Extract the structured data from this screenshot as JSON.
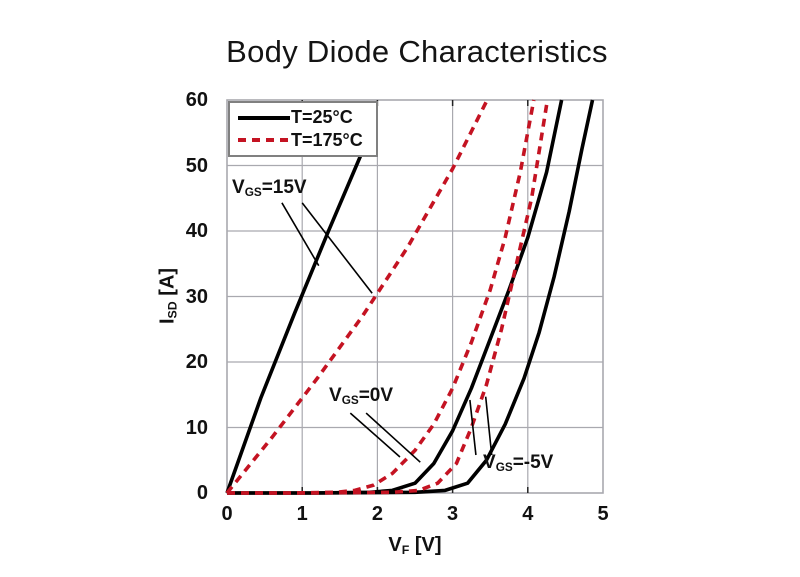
{
  "chart_data": {
    "type": "line",
    "title": "Body Diode Characteristics",
    "xlabel": "VF [V]",
    "ylabel": "ISD [A]",
    "xlim": [
      0,
      5
    ],
    "ylim": [
      0,
      60
    ],
    "x_ticks": [
      0,
      1,
      2,
      3,
      4,
      5
    ],
    "y_ticks": [
      0,
      10,
      20,
      30,
      40,
      50,
      60
    ],
    "grid": true,
    "legend_position": "top-left",
    "colors": {
      "t25": "#000000",
      "t175": "#c41322",
      "grid": "#a9a9af",
      "tick": "#222222"
    },
    "axis_display": {
      "x": {
        "pre": "V",
        "sub": "F",
        "post": " [V]"
      },
      "y": {
        "pre": "I",
        "sub": "SD",
        "post": " [A]"
      }
    },
    "legend": {
      "items": [
        {
          "label": "T=25°C",
          "style": "solid",
          "color": "#000000"
        },
        {
          "label": "T=175°C",
          "style": "dashed",
          "color": "#c41322"
        }
      ]
    },
    "series": [
      {
        "id": "vgs15-t25",
        "name": "VGS=15V, T=25°C",
        "vgs": "15V",
        "temperature": "25°C",
        "style": "solid",
        "color": "#000000",
        "points": [
          [
            0,
            0
          ],
          [
            0.45,
            14.5
          ],
          [
            0.9,
            27.5
          ],
          [
            1.35,
            40
          ],
          [
            1.78,
            51.6
          ]
        ]
      },
      {
        "id": "vgs0-t25",
        "name": "VGS=0V, T=25°C",
        "vgs": "0V",
        "temperature": "25°C",
        "style": "solid",
        "color": "#000000",
        "points": [
          [
            0,
            0
          ],
          [
            1.1,
            0
          ],
          [
            1.9,
            0.1
          ],
          [
            2.2,
            0.4
          ],
          [
            2.5,
            1.5
          ],
          [
            2.75,
            4.5
          ],
          [
            3.0,
            9.5
          ],
          [
            3.25,
            16
          ],
          [
            3.5,
            23.5
          ],
          [
            3.75,
            31
          ],
          [
            4.0,
            39
          ],
          [
            4.25,
            49
          ],
          [
            4.45,
            60
          ]
        ]
      },
      {
        "id": "vgs-5-t25",
        "name": "VGS=-5V, T=25°C",
        "vgs": "-5V",
        "temperature": "25°C",
        "style": "solid",
        "color": "#000000",
        "points": [
          [
            0,
            0
          ],
          [
            1.3,
            0
          ],
          [
            2.5,
            0.1
          ],
          [
            2.9,
            0.4
          ],
          [
            3.2,
            1.5
          ],
          [
            3.45,
            5
          ],
          [
            3.7,
            10.5
          ],
          [
            3.95,
            17.5
          ],
          [
            4.15,
            24.5
          ],
          [
            4.35,
            33
          ],
          [
            4.55,
            43
          ],
          [
            4.72,
            52.5
          ],
          [
            4.86,
            60
          ]
        ]
      },
      {
        "id": "vgs15-t175",
        "name": "VGS=15V, T=175°C",
        "vgs": "15V",
        "temperature": "175°C",
        "style": "dashed",
        "color": "#c41322",
        "points": [
          [
            0,
            0
          ],
          [
            0.6,
            8.5
          ],
          [
            1.2,
            17.5
          ],
          [
            1.8,
            27
          ],
          [
            2.4,
            37.5
          ],
          [
            3.0,
            49.5
          ],
          [
            3.46,
            60
          ]
        ]
      },
      {
        "id": "vgs0-t175",
        "name": "VGS=0V, T=175°C",
        "vgs": "0V",
        "temperature": "175°C",
        "style": "dashed",
        "color": "#c41322",
        "points": [
          [
            0,
            0
          ],
          [
            0.9,
            0
          ],
          [
            1.45,
            0.1
          ],
          [
            1.7,
            0.4
          ],
          [
            1.95,
            1.2
          ],
          [
            2.2,
            3
          ],
          [
            2.5,
            6.5
          ],
          [
            2.75,
            10.5
          ],
          [
            3.0,
            16
          ],
          [
            3.25,
            23
          ],
          [
            3.5,
            31
          ],
          [
            3.7,
            39
          ],
          [
            3.9,
            49
          ],
          [
            4.08,
            60
          ]
        ]
      },
      {
        "id": "vgs-5-t175",
        "name": "VGS=-5V, T=175°C",
        "vgs": "-5V",
        "temperature": "175°C",
        "style": "dashed",
        "color": "#c41322",
        "points": [
          [
            0,
            0
          ],
          [
            1.1,
            0
          ],
          [
            2.2,
            0.1
          ],
          [
            2.55,
            0.4
          ],
          [
            2.8,
            1.5
          ],
          [
            3.05,
            4.5
          ],
          [
            3.25,
            10
          ],
          [
            3.45,
            16.5
          ],
          [
            3.65,
            25
          ],
          [
            3.85,
            35
          ],
          [
            4.05,
            45
          ],
          [
            4.26,
            60
          ]
        ]
      }
    ],
    "annotations": [
      {
        "id": "vgs15",
        "text": "VGS=15V",
        "pre": "V",
        "sub": "GS",
        "post": "=15V",
        "leaders": [
          [
            [
              0.73,
              44.3
            ],
            [
              1.22,
              34.7
            ]
          ],
          [
            [
              1.0,
              44.3
            ],
            [
              1.93,
              30.5
            ]
          ]
        ]
      },
      {
        "id": "vgs0",
        "text": "VGS=0V",
        "pre": "V",
        "sub": "GS",
        "post": "=0V",
        "leaders": [
          [
            [
              1.64,
              12.2
            ],
            [
              2.3,
              5.5
            ]
          ],
          [
            [
              1.85,
              12.2
            ],
            [
              2.57,
              4.7
            ]
          ]
        ]
      },
      {
        "id": "vgsm5",
        "text": "VGS=-5V",
        "pre": "V",
        "sub": "GS",
        "post": "=-5V",
        "leaders": [
          [
            [
              3.31,
              5.8
            ],
            [
              3.23,
              14.2
            ]
          ],
          [
            [
              3.52,
              5.8
            ],
            [
              3.44,
              14.7
            ]
          ]
        ]
      }
    ]
  }
}
